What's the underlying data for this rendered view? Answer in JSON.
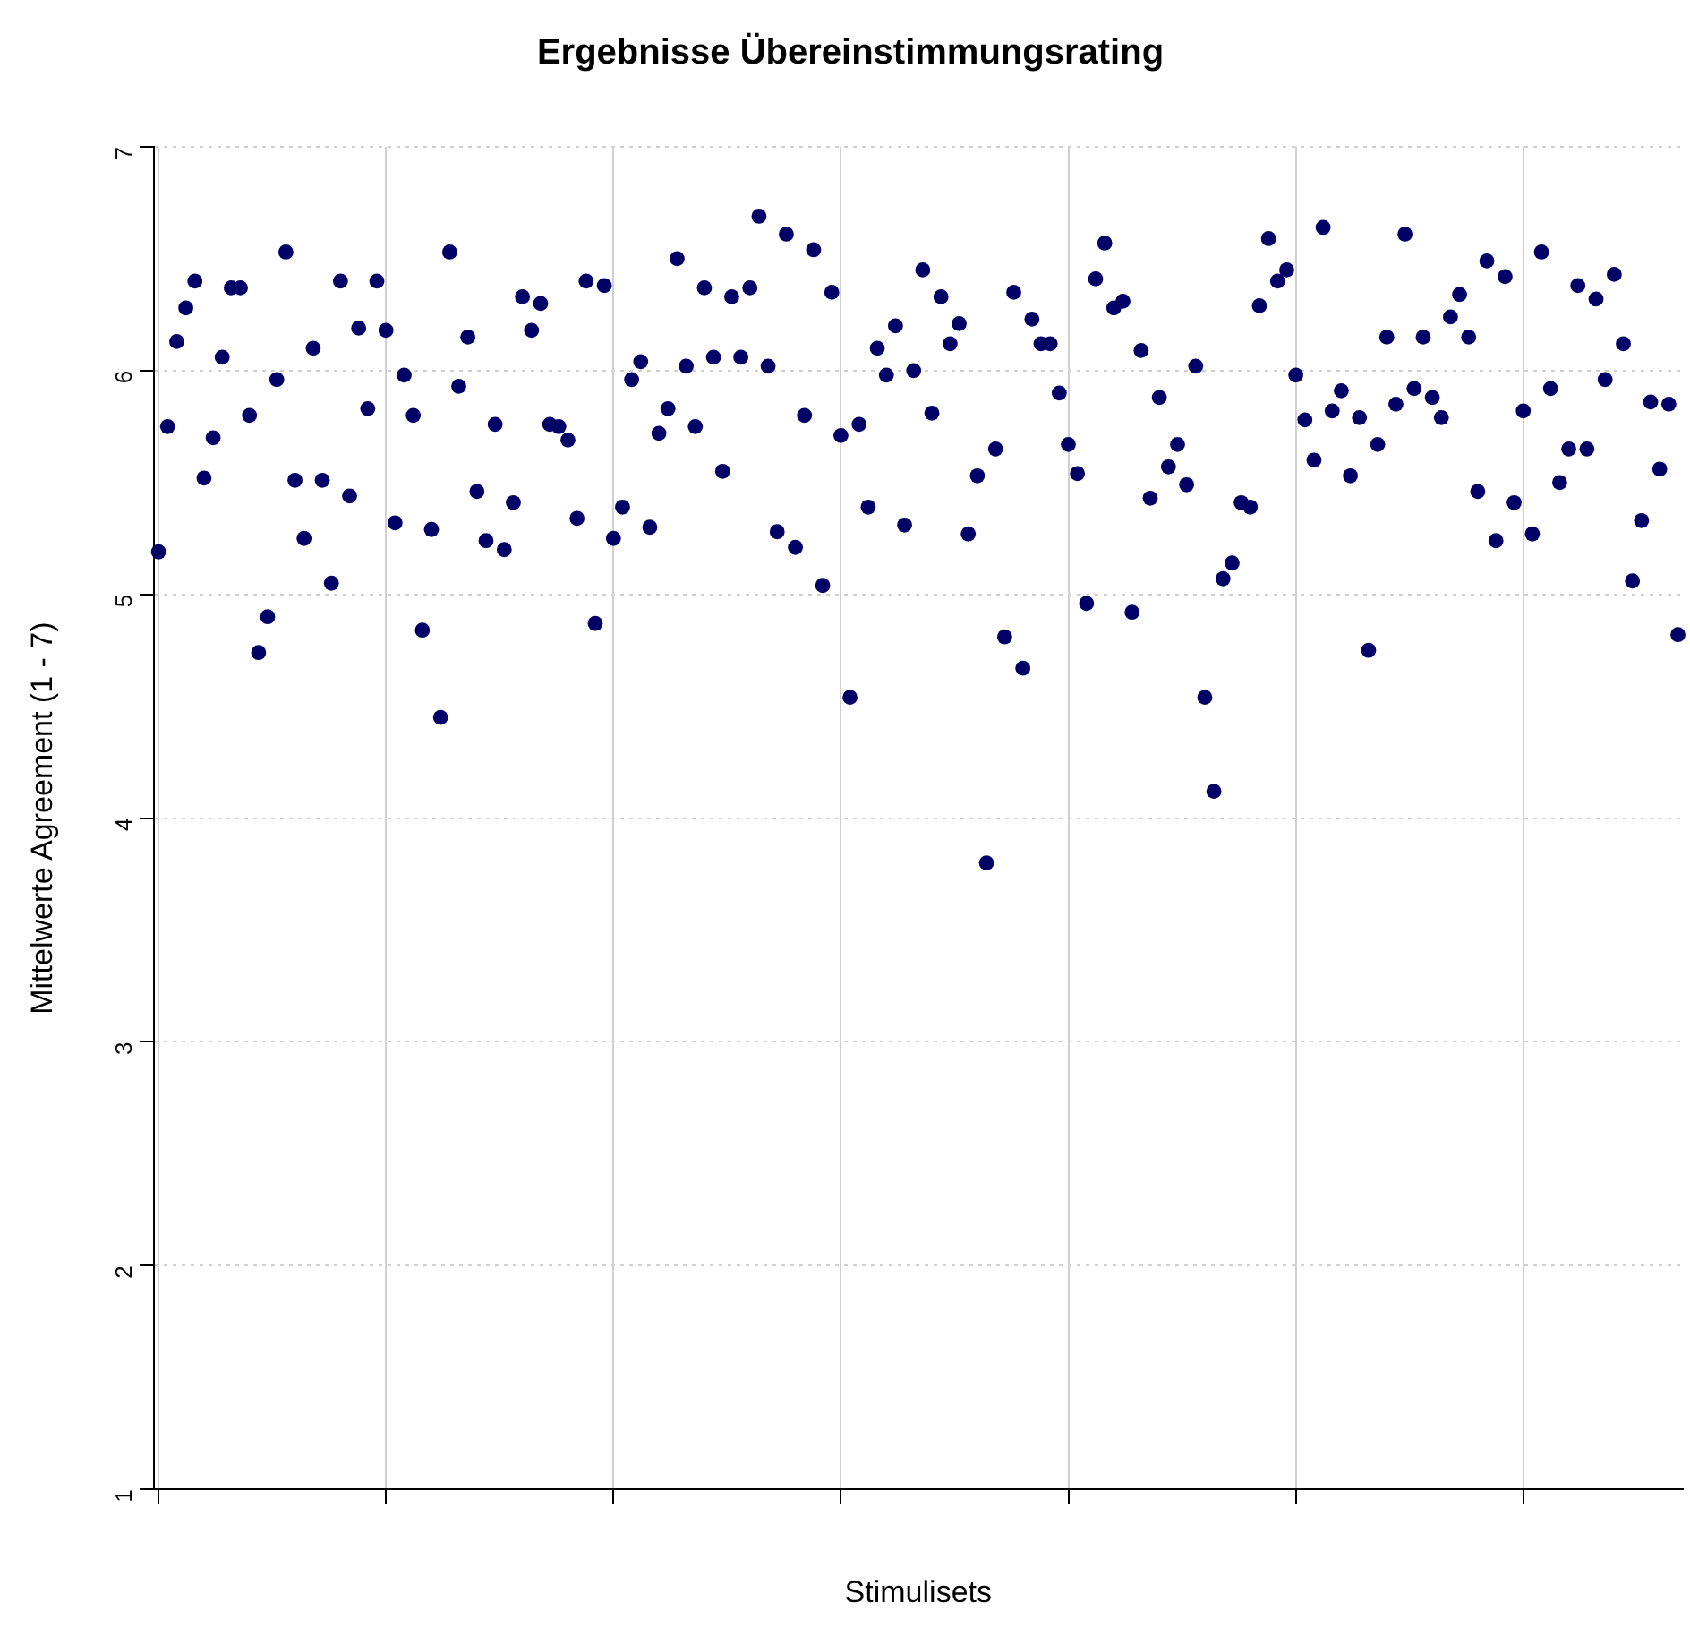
{
  "chart_data": {
    "type": "scatter",
    "title": "Ergebnisse Übereinstimmungsrating",
    "xlabel": "Stimulisets",
    "ylabel": "Mittelwerte Agreement (1 - 7)",
    "categories": [
      null,
      null,
      null,
      null,
      null,
      null,
      null,
      null,
      null,
      null,
      null,
      null,
      null,
      null,
      null,
      null,
      null,
      null,
      null,
      null,
      null,
      null,
      null,
      null,
      null,
      null,
      null,
      null,
      null,
      null,
      null,
      null,
      null,
      null,
      null,
      null,
      null,
      null,
      null,
      null,
      null,
      null,
      null,
      null,
      null,
      null,
      null,
      null,
      null,
      null,
      null,
      null,
      null,
      null,
      null,
      null,
      null,
      null,
      null,
      null,
      null,
      null,
      null,
      null,
      null,
      null,
      null,
      null,
      null,
      null,
      null,
      null,
      null,
      null,
      null,
      null,
      null,
      null,
      null,
      null,
      null,
      null,
      null,
      null,
      null,
      null,
      null,
      null,
      null,
      null,
      null,
      null,
      null,
      null,
      null,
      null,
      null,
      null,
      null,
      null,
      null,
      null,
      null,
      null,
      null,
      null,
      null,
      null,
      null,
      null,
      null,
      null,
      null,
      null,
      null,
      null,
      null,
      null,
      null,
      null,
      null,
      null,
      null,
      null,
      null,
      null,
      null,
      null,
      null,
      null,
      null,
      null,
      null,
      null,
      null,
      null,
      null,
      null,
      null,
      null,
      null,
      null,
      null,
      null,
      null,
      null,
      null,
      null,
      null,
      null,
      null,
      null,
      null,
      null,
      null,
      null,
      null,
      null,
      null,
      null,
      null,
      null,
      null,
      null,
      null,
      null,
      null,
      null
    ],
    "series": [
      {
        "color": "#000066",
        "values": [
          5.19,
          5.75,
          6.13,
          6.28,
          6.4,
          5.52,
          5.7,
          6.06,
          6.37,
          6.37,
          5.8,
          4.74,
          4.9,
          5.96,
          6.53,
          5.51,
          5.25,
          6.1,
          5.51,
          5.05,
          6.4,
          5.44,
          6.19,
          5.83,
          6.4,
          6.18,
          5.32,
          5.98,
          5.8,
          4.84,
          5.29,
          4.45,
          6.53,
          5.93,
          6.15,
          5.46,
          5.24,
          5.76,
          5.2,
          5.41,
          6.33,
          6.18,
          6.3,
          5.76,
          5.75,
          5.69,
          5.34,
          6.4,
          4.87,
          6.38,
          5.25,
          5.39,
          5.96,
          6.04,
          5.3,
          5.72,
          5.83,
          6.5,
          6.02,
          5.75,
          6.37,
          6.06,
          5.55,
          6.33,
          6.06,
          6.37,
          6.69,
          6.02,
          5.28,
          6.61,
          5.21,
          5.8,
          6.54,
          5.04,
          6.35,
          5.71,
          4.54,
          5.76,
          5.39,
          6.1,
          5.98,
          6.2,
          5.31,
          6.0,
          6.45,
          5.81,
          6.33,
          6.12,
          6.21,
          5.27,
          5.53,
          3.8,
          5.65,
          4.81,
          6.35,
          4.67,
          6.23,
          6.12,
          6.12,
          5.9,
          5.67,
          5.54,
          4.96,
          6.41,
          6.57,
          6.28,
          6.31,
          4.92,
          6.09,
          5.43,
          5.88,
          5.57,
          5.67,
          5.49,
          6.02,
          4.54,
          4.12,
          5.07,
          5.14,
          5.41,
          5.39,
          6.29,
          6.59,
          6.4,
          6.45,
          5.98,
          5.78,
          5.6,
          6.64,
          5.82,
          5.91,
          5.53,
          5.79,
          4.75,
          5.67,
          6.15,
          5.85,
          6.61,
          5.92,
          6.15,
          5.88,
          5.79,
          6.24,
          6.34,
          6.15,
          5.46,
          6.49,
          5.24,
          6.42,
          5.41,
          5.82,
          5.27,
          6.53,
          5.92,
          5.5,
          5.65,
          6.38,
          5.65,
          6.32,
          5.96,
          6.43,
          6.12,
          5.06,
          5.33,
          5.86,
          5.56,
          5.85,
          4.82
        ]
      }
    ],
    "ylim": [
      1,
      7
    ],
    "yticks": [
      1,
      2,
      3,
      4,
      5,
      6,
      7
    ],
    "grid": true,
    "legend": false,
    "marker": "circle",
    "tick_labels": "y"
  }
}
